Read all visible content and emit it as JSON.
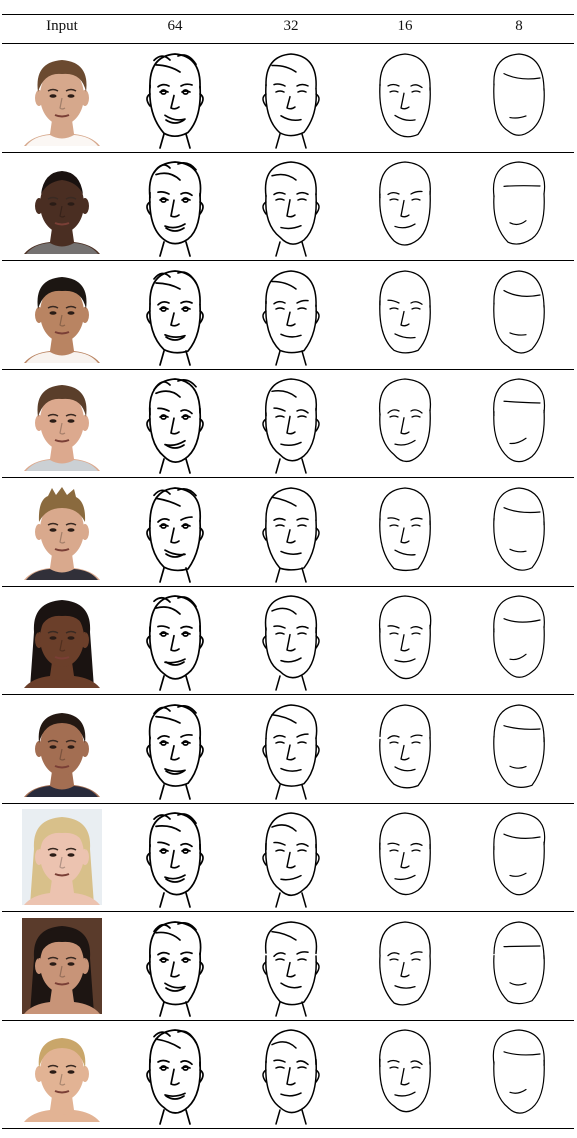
{
  "table": {
    "headers": [
      "Input",
      "64",
      "32",
      "16",
      "8"
    ],
    "rows": [
      {
        "skin": "#d6a88c",
        "hair": "#6b4a30",
        "bg": "#ffffff",
        "hair_style": "short",
        "shirt": "#ffffff"
      },
      {
        "skin": "#4a2e22",
        "hair": "#1a1210",
        "bg": "#ffffff",
        "hair_style": "bald",
        "shirt": "#7a7a7a"
      },
      {
        "skin": "#b98462",
        "hair": "#1c1612",
        "bg": "#ffffff",
        "hair_style": "short",
        "shirt": "#ffffff"
      },
      {
        "skin": "#dca98e",
        "hair": "#5a3e2a",
        "bg": "#ffffff",
        "hair_style": "short",
        "shirt": "#c9d4dc"
      },
      {
        "skin": "#d9a98d",
        "hair": "#8a6a3e",
        "bg": "#ffffff",
        "hair_style": "spiky",
        "shirt": "#1e2230"
      },
      {
        "skin": "#6b3f2a",
        "hair": "#1a1311",
        "bg": "#ffffff",
        "hair_style": "long",
        "shirt": "#6b3f2a"
      },
      {
        "skin": "#a36e52",
        "hair": "#241812",
        "bg": "#ffffff",
        "hair_style": "tied",
        "shirt": "#1b2338"
      },
      {
        "skin": "#ecc3b0",
        "hair": "#d8c08a",
        "bg": "#e9eef2",
        "hair_style": "long",
        "shirt": "#ecc3b0"
      },
      {
        "skin": "#c89478",
        "hair": "#1d1512",
        "bg": "#5a3b2b",
        "hair_style": "long",
        "shirt": "#c89478"
      },
      {
        "skin": "#e2b394",
        "hair": "#c9a66a",
        "bg": "#ffffff",
        "hair_style": "tied",
        "shirt": "#e2b394"
      }
    ]
  }
}
